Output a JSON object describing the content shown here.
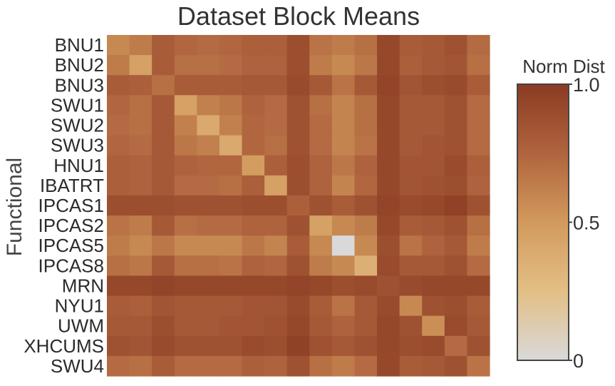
{
  "chart_data": {
    "type": "heatmap",
    "title": "Dataset Block Means",
    "ylabel": "Functional",
    "xlabel": "",
    "categories": [
      "BNU1",
      "BNU2",
      "BNU3",
      "SWU1",
      "SWU2",
      "SWU3",
      "HNU1",
      "IBATRT",
      "IPCAS1",
      "IPCAS2",
      "IPCAS5",
      "IPCAS8",
      "MRN",
      "NYU1",
      "UWM",
      "XHCUMS",
      "SWU4"
    ],
    "colorbar": {
      "title": "Norm Dist",
      "range": [
        0,
        1
      ],
      "ticks": [
        0,
        0.5,
        1.0
      ],
      "tick_labels": [
        "0",
        "0.5",
        "1.0"
      ]
    },
    "colorscale": [
      [
        0,
        "#d9d9d9"
      ],
      [
        0.25,
        "#e3bf86"
      ],
      [
        0.5,
        "#d29a5c"
      ],
      [
        0.75,
        "#b0643e"
      ],
      [
        1,
        "#8a3b22"
      ]
    ],
    "z": [
      [
        0.58,
        0.64,
        0.8,
        0.74,
        0.72,
        0.74,
        0.78,
        0.78,
        0.88,
        0.68,
        0.64,
        0.7,
        0.92,
        0.8,
        0.82,
        0.86,
        0.72
      ],
      [
        0.64,
        0.45,
        0.8,
        0.7,
        0.7,
        0.72,
        0.76,
        0.76,
        0.88,
        0.64,
        0.58,
        0.66,
        0.92,
        0.78,
        0.82,
        0.84,
        0.7
      ],
      [
        0.8,
        0.78,
        0.7,
        0.8,
        0.8,
        0.8,
        0.82,
        0.82,
        0.9,
        0.82,
        0.68,
        0.82,
        0.94,
        0.84,
        0.88,
        0.9,
        0.8
      ],
      [
        0.74,
        0.7,
        0.82,
        0.45,
        0.62,
        0.66,
        0.76,
        0.72,
        0.86,
        0.7,
        0.6,
        0.7,
        0.92,
        0.82,
        0.82,
        0.86,
        0.72
      ],
      [
        0.72,
        0.7,
        0.82,
        0.62,
        0.4,
        0.62,
        0.74,
        0.72,
        0.86,
        0.72,
        0.6,
        0.7,
        0.92,
        0.82,
        0.82,
        0.86,
        0.72
      ],
      [
        0.74,
        0.72,
        0.82,
        0.66,
        0.62,
        0.4,
        0.74,
        0.7,
        0.86,
        0.72,
        0.6,
        0.68,
        0.92,
        0.82,
        0.84,
        0.86,
        0.72
      ],
      [
        0.78,
        0.76,
        0.82,
        0.76,
        0.74,
        0.74,
        0.48,
        0.78,
        0.88,
        0.76,
        0.66,
        0.76,
        0.92,
        0.84,
        0.84,
        0.9,
        0.78
      ],
      [
        0.78,
        0.76,
        0.82,
        0.72,
        0.72,
        0.7,
        0.78,
        0.45,
        0.88,
        0.76,
        0.6,
        0.74,
        0.92,
        0.84,
        0.86,
        0.88,
        0.76
      ],
      [
        0.88,
        0.88,
        0.88,
        0.86,
        0.86,
        0.86,
        0.88,
        0.88,
        0.78,
        0.86,
        0.8,
        0.86,
        0.94,
        0.9,
        0.92,
        0.96,
        0.86
      ],
      [
        0.68,
        0.64,
        0.82,
        0.7,
        0.72,
        0.72,
        0.76,
        0.76,
        0.86,
        0.45,
        0.58,
        0.64,
        0.92,
        0.8,
        0.82,
        0.86,
        0.7
      ],
      [
        0.64,
        0.58,
        0.66,
        0.58,
        0.58,
        0.58,
        0.66,
        0.6,
        0.8,
        0.58,
        0.0,
        0.58,
        0.88,
        0.68,
        0.76,
        0.82,
        0.64
      ],
      [
        0.7,
        0.66,
        0.82,
        0.7,
        0.7,
        0.68,
        0.76,
        0.74,
        0.86,
        0.64,
        0.58,
        0.35,
        0.9,
        0.82,
        0.82,
        0.86,
        0.72
      ],
      [
        0.92,
        0.92,
        0.94,
        0.92,
        0.92,
        0.92,
        0.92,
        0.92,
        0.94,
        0.92,
        0.88,
        0.9,
        0.86,
        0.9,
        0.92,
        0.92,
        0.92
      ],
      [
        0.8,
        0.78,
        0.84,
        0.82,
        0.82,
        0.82,
        0.84,
        0.84,
        0.9,
        0.8,
        0.68,
        0.82,
        0.9,
        0.58,
        0.86,
        0.88,
        0.8
      ],
      [
        0.82,
        0.82,
        0.88,
        0.82,
        0.82,
        0.84,
        0.84,
        0.86,
        0.92,
        0.82,
        0.76,
        0.82,
        0.92,
        0.86,
        0.55,
        0.9,
        0.82
      ],
      [
        0.86,
        0.84,
        0.9,
        0.86,
        0.86,
        0.86,
        0.9,
        0.88,
        0.96,
        0.86,
        0.82,
        0.86,
        0.92,
        0.88,
        0.9,
        0.72,
        0.86
      ],
      [
        0.72,
        0.7,
        0.8,
        0.72,
        0.72,
        0.72,
        0.78,
        0.76,
        0.86,
        0.7,
        0.64,
        0.72,
        0.92,
        0.8,
        0.82,
        0.86,
        0.68
      ]
    ]
  }
}
